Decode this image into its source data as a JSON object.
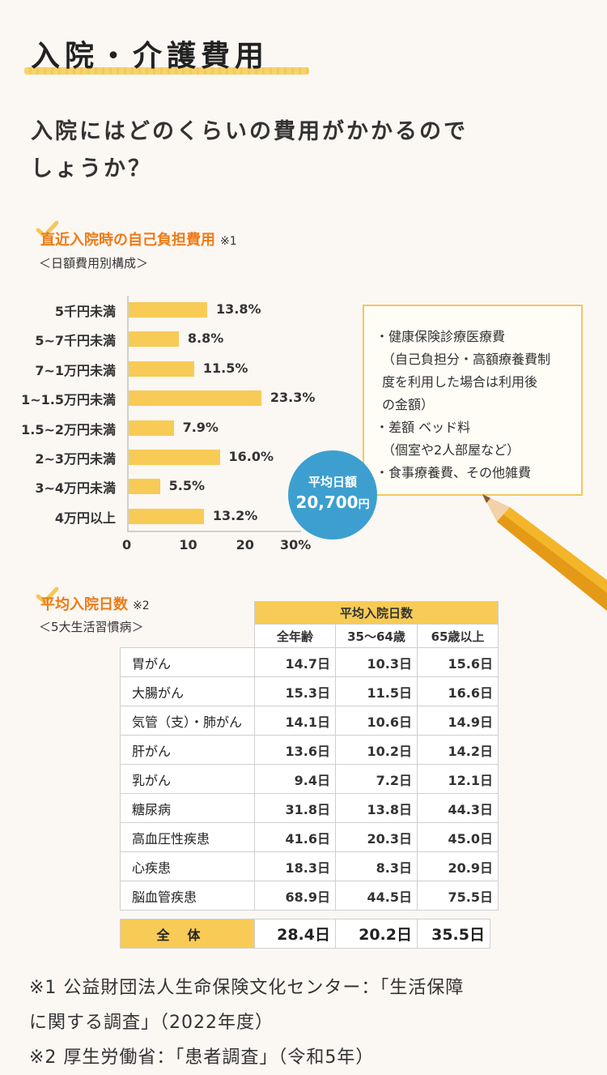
{
  "title": "入院・介護費用",
  "question": [
    "入院にはどのくらいの費用がかかるので",
    "しょうか？"
  ],
  "section1": {
    "heading": "直近入院時の自己負担費用",
    "note": "※1",
    "sub": "＜日額費用別構成＞"
  },
  "chart_data": {
    "type": "bar",
    "orientation": "horizontal",
    "categories": [
      "5千円未満",
      "5~7千円未満",
      "7~1万円未満",
      "1~1.5万円未満",
      "1.5~2万円未満",
      "2~3万円未満",
      "3~4万円未満",
      "4万円以上"
    ],
    "values": [
      13.8,
      8.8,
      11.5,
      23.3,
      7.9,
      16.0,
      5.5,
      13.2
    ],
    "value_labels": [
      "13.8%",
      "8.8%",
      "11.5%",
      "23.3%",
      "7.9%",
      "16.0%",
      "5.5%",
      "13.2%"
    ],
    "xticks": [
      "0",
      "10",
      "20",
      "30%"
    ],
    "xlim": [
      0,
      30
    ],
    "bar_color": "#f7cb55",
    "grid": false
  },
  "callout": {
    "lines": [
      "・健康保険診療医療費",
      "（自己負担分・高額療養費制",
      "度を利用した場合は利用後",
      "の金額）",
      "・差額 ベッド料",
      "（個室や2人部屋など）",
      "・食事療養費、その他雑費"
    ],
    "avg_label": "平均日額",
    "avg_value": "20,700",
    "avg_unit": "円"
  },
  "section2": {
    "heading": "平均入院日数",
    "note": "※2",
    "sub": "＜5大生活習慣病＞"
  },
  "table": {
    "group_header": "平均入院日数",
    "columns": [
      "全年齢",
      "35～64歳",
      "65歳以上"
    ],
    "rows": [
      {
        "name": "胃がん",
        "values": [
          "14.7日",
          "10.3日",
          "15.6日"
        ]
      },
      {
        "name": "大腸がん",
        "values": [
          "15.3日",
          "11.5日",
          "16.6日"
        ]
      },
      {
        "name": "気管（支）・肺がん",
        "values": [
          "14.1日",
          "10.6日",
          "14.9日"
        ]
      },
      {
        "name": "肝がん",
        "values": [
          "13.6日",
          "10.2日",
          "14.2日"
        ]
      },
      {
        "name": "乳がん",
        "values": [
          "9.4日",
          "7.2日",
          "12.1日"
        ]
      },
      {
        "name": "糖尿病",
        "values": [
          "31.8日",
          "13.8日",
          "44.3日"
        ]
      },
      {
        "name": "高血圧性疾患",
        "values": [
          "41.6日",
          "20.3日",
          "45.0日"
        ]
      },
      {
        "name": "心疾患",
        "values": [
          "18.3日",
          "8.3日",
          "20.9日"
        ]
      },
      {
        "name": "脳血管疾患",
        "values": [
          "68.9日",
          "44.5日",
          "75.5日"
        ]
      }
    ],
    "total": {
      "name": "全体",
      "values": [
        "28.4日",
        "20.2日",
        "35.5日"
      ]
    }
  },
  "notes": [
    "※1 公益財団法人生命保険文化センター：「生活保障",
    "に関する調査」（2022年度）",
    "※2 厚生労働省：「患者調査」（令和5年）"
  ],
  "colors": {
    "accent": "#ee7b17",
    "bar": "#f7cb55",
    "circle": "#3d9fd0"
  }
}
